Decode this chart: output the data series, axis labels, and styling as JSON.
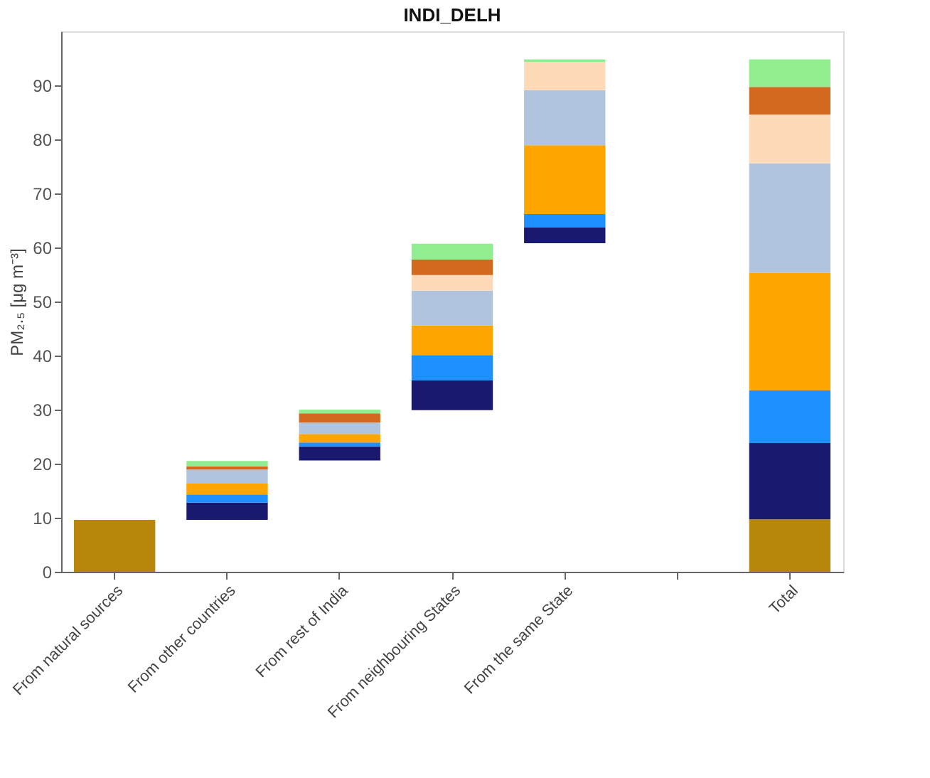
{
  "chart_data": {
    "type": "bar",
    "title": "INDI_DELH",
    "ylabel": "PM₂.₅ [μg m⁻³]",
    "categories": [
      "From natural sources",
      "From other countries",
      "From rest of India",
      "From neighbouring States",
      "From the same State",
      null,
      "Total"
    ],
    "series": [
      {
        "color": "#b8860b",
        "values": [
          9.6,
          null,
          null,
          null,
          null,
          null,
          9.7
        ],
        "base": [
          0,
          null,
          null,
          null,
          null,
          null,
          0
        ]
      },
      {
        "color": "#191970",
        "values": [
          null,
          3.2,
          2.6,
          5.5,
          2.9,
          null,
          14.1
        ],
        "base": [
          null,
          9.6,
          20.6,
          29.9,
          60.8,
          null,
          9.7
        ]
      },
      {
        "color": "#1e90ff",
        "values": [
          null,
          1.5,
          0.7,
          4.7,
          2.5,
          null,
          9.8
        ],
        "base": [
          null,
          12.8,
          23.2,
          35.4,
          63.7,
          null,
          23.8
        ]
      },
      {
        "color": "#ffa500",
        "values": [
          null,
          2.0,
          1.6,
          5.5,
          12.7,
          null,
          21.7
        ],
        "base": [
          null,
          14.3,
          23.9,
          40.1,
          66.2,
          null,
          33.6
        ]
      },
      {
        "color": "#b0c4de",
        "values": [
          null,
          2.6,
          2.1,
          6.4,
          10.2,
          null,
          20.3
        ],
        "base": [
          null,
          16.3,
          25.5,
          45.6,
          78.9,
          null,
          55.3
        ]
      },
      {
        "color": "#ffdab9",
        "values": [
          null,
          null,
          null,
          2.9,
          5.2,
          null,
          9.0
        ],
        "base": [
          null,
          null,
          null,
          52.0,
          89.1,
          null,
          75.6
        ]
      },
      {
        "color": "#d2691e",
        "values": [
          null,
          0.6,
          1.7,
          2.9,
          null,
          null,
          5.1
        ],
        "base": [
          null,
          18.9,
          27.6,
          54.9,
          null,
          null,
          84.6
        ]
      },
      {
        "color": "#90ee90",
        "values": [
          null,
          1.0,
          0.7,
          2.9,
          0.5,
          null,
          5.1
        ],
        "base": [
          null,
          19.5,
          29.3,
          57.8,
          94.3,
          null,
          89.7
        ]
      }
    ],
    "ylim": [
      0,
      100
    ],
    "yticks": [
      0,
      10,
      20,
      30,
      40,
      50,
      60,
      70,
      80,
      90
    ],
    "grid": false,
    "legend": false
  }
}
